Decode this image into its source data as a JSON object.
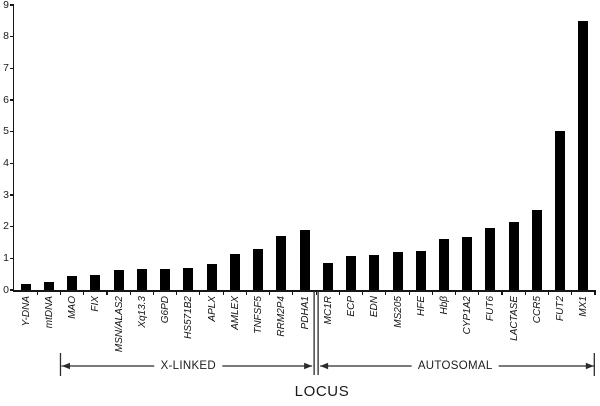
{
  "chart_data": {
    "type": "bar",
    "title": "",
    "xlabel": "LOCUS",
    "ylabel": "",
    "ylim": [
      0,
      9
    ],
    "yticks": [
      0,
      1,
      2,
      3,
      4,
      5,
      6,
      7,
      8,
      9
    ],
    "grid": false,
    "legend": "none",
    "bar_color": "#000000",
    "categories": [
      "Y-DNA",
      "mtDNA",
      "MAO",
      "FIX",
      "MSN/ALAS2",
      "Xq13.3",
      "G6PD",
      "HS571B2",
      "APLX",
      "AMLEX",
      "TNFSF5",
      "RRM2P4",
      "PDHA1",
      "MC1R",
      "ECP",
      "EDN",
      "MS205",
      "HFE",
      "Hbβ",
      "CYP1A2",
      "FUT6",
      "LACTASE",
      "CCR5",
      "FUT2",
      "MX1"
    ],
    "values": [
      0.2,
      0.24,
      0.45,
      0.47,
      0.63,
      0.67,
      0.67,
      0.7,
      0.83,
      1.15,
      1.3,
      1.7,
      1.9,
      0.85,
      1.07,
      1.12,
      1.21,
      1.24,
      1.62,
      1.68,
      1.95,
      2.14,
      2.53,
      5.02,
      8.5
    ],
    "groups": [
      {
        "label": "X-LINKED",
        "start_index": 2,
        "end_index": 12
      },
      {
        "label": "AUTOSOMAL",
        "start_index": 13,
        "end_index": 24
      }
    ]
  }
}
